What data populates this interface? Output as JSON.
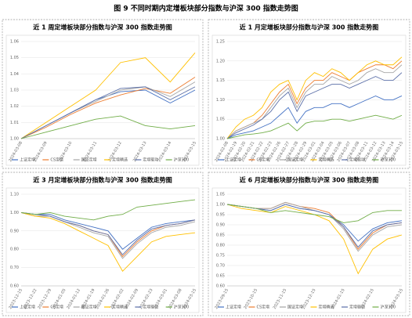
{
  "title": "图 9 不同时期内定增板块部分指数与沪深 300 指数走势图",
  "chart_data": [
    {
      "type": "line",
      "title": "近 1 周定增板块部分指数与沪深 300 指数走势图",
      "categories": [
        "2024-03-08",
        "2024-03-09",
        "2024-03-10",
        "2024-03-11",
        "2024-03-12",
        "2024-03-13",
        "2024-03-14",
        "2024-03-15"
      ],
      "ylim": [
        1.0,
        1.06
      ],
      "yticks": [
        {
          "value": 1.0,
          "label": "1.00"
        },
        1.01,
        1.02,
        1.03,
        1.04,
        1.05,
        1.06
      ],
      "grid": true,
      "series": [
        {
          "name": "上证定增",
          "color": "#4472c4",
          "values": [
            1.0,
            1.008,
            1.016,
            1.024,
            1.029,
            1.03,
            1.022,
            1.03
          ]
        },
        {
          "name": "CS定增",
          "color": "#ed7d31",
          "values": [
            1.0,
            1.007,
            1.015,
            1.022,
            1.027,
            1.031,
            1.028,
            1.038
          ]
        },
        {
          "name": "国证定增",
          "color": "#a5a5a5",
          "values": [
            1.0,
            1.008,
            1.016,
            1.023,
            1.03,
            1.032,
            1.026,
            1.035
          ]
        },
        {
          "name": "定增精选",
          "color": "#ffc000",
          "values": [
            1.0,
            1.01,
            1.02,
            1.03,
            1.047,
            1.05,
            1.035,
            1.053
          ]
        },
        {
          "name": "定增驱动",
          "color": "#5b6fa8",
          "values": [
            1.0,
            1.008,
            1.016,
            1.024,
            1.031,
            1.032,
            1.024,
            1.032
          ]
        },
        {
          "name": "沪深300",
          "color": "#70ad47",
          "values": [
            1.0,
            1.004,
            1.008,
            1.012,
            1.014,
            1.008,
            1.006,
            1.008
          ]
        }
      ]
    },
    {
      "type": "line",
      "title": "近 1 月定增板块部分指数与沪深 300 指数走势图",
      "categories": [
        "2024-02-08",
        "2024-02-19",
        "2024-02-20",
        "2024-02-21",
        "2024-02-22",
        "2024-02-23",
        "2024-02-26",
        "2024-02-27",
        "2024-02-28",
        "2024-02-29",
        "2024-03-01",
        "2024-03-04",
        "2024-03-05",
        "2024-03-06",
        "2024-03-07",
        "2024-03-08",
        "2024-03-11",
        "2024-03-12",
        "2024-03-13",
        "2024-03-14",
        "2024-03-15"
      ],
      "ylim": [
        1.0,
        1.25
      ],
      "yticks": [
        {
          "value": 1.0,
          "label": "1.00"
        },
        1.05,
        {
          "value": 1.1,
          "label": "1.10"
        },
        1.15,
        {
          "value": 1.2,
          "label": "1.20"
        },
        1.25
      ],
      "grid": true,
      "series": [
        {
          "name": "上证定增",
          "color": "#4472c4",
          "values": [
            1.0,
            1.01,
            1.015,
            1.02,
            1.03,
            1.04,
            1.06,
            1.08,
            1.04,
            1.07,
            1.08,
            1.08,
            1.09,
            1.09,
            1.08,
            1.09,
            1.1,
            1.11,
            1.1,
            1.1,
            1.11
          ]
        },
        {
          "name": "CS定增",
          "color": "#ed7d31",
          "values": [
            1.0,
            1.02,
            1.03,
            1.04,
            1.06,
            1.09,
            1.12,
            1.14,
            1.09,
            1.13,
            1.15,
            1.15,
            1.17,
            1.16,
            1.15,
            1.17,
            1.18,
            1.19,
            1.19,
            1.18,
            1.2
          ]
        },
        {
          "name": "国证定增",
          "color": "#a5a5a5",
          "values": [
            1.0,
            1.02,
            1.03,
            1.04,
            1.05,
            1.08,
            1.11,
            1.13,
            1.08,
            1.12,
            1.14,
            1.14,
            1.16,
            1.15,
            1.14,
            1.15,
            1.17,
            1.18,
            1.17,
            1.17,
            1.19
          ]
        },
        {
          "name": "定增精选",
          "color": "#ffc000",
          "values": [
            1.0,
            1.03,
            1.05,
            1.06,
            1.08,
            1.12,
            1.14,
            1.15,
            1.1,
            1.15,
            1.17,
            1.16,
            1.18,
            1.17,
            1.15,
            1.17,
            1.19,
            1.2,
            1.19,
            1.19,
            1.21
          ]
        },
        {
          "name": "定增驱动",
          "color": "#5b6fa8",
          "values": [
            1.0,
            1.015,
            1.025,
            1.035,
            1.05,
            1.07,
            1.1,
            1.12,
            1.07,
            1.11,
            1.12,
            1.13,
            1.14,
            1.14,
            1.13,
            1.14,
            1.15,
            1.16,
            1.15,
            1.15,
            1.17
          ]
        },
        {
          "name": "沪深300",
          "color": "#70ad47",
          "values": [
            1.0,
            1.005,
            1.01,
            1.012,
            1.015,
            1.02,
            1.03,
            1.04,
            1.02,
            1.04,
            1.045,
            1.045,
            1.05,
            1.05,
            1.045,
            1.05,
            1.055,
            1.06,
            1.055,
            1.05,
            1.06
          ]
        }
      ]
    },
    {
      "type": "line",
      "title": "近 3 月定增板块部分指数与沪深 300 指数走势图",
      "categories": [
        "2023-12-15",
        "2023-12-22",
        "2023-12-29",
        "2024-01-05",
        "2024-01-12",
        "2024-01-19",
        "2024-01-26",
        "2024-02-02",
        "2024-02-09",
        "2024-02-23",
        "2024-03-01",
        "2024-03-08",
        "2024-03-15"
      ],
      "ylim": [
        0.6,
        1.1
      ],
      "yticks": [
        {
          "value": 0.6,
          "label": "0.60"
        },
        {
          "value": 0.7,
          "label": "0.70"
        },
        {
          "value": 0.8,
          "label": "0.80"
        },
        {
          "value": 0.9,
          "label": "0.90"
        },
        {
          "value": 1.0,
          "label": "1.00"
        },
        {
          "value": 1.1,
          "label": "1.10"
        }
      ],
      "grid": true,
      "series": [
        {
          "name": "上证定增",
          "color": "#4472c4",
          "values": [
            1.0,
            0.99,
            0.99,
            0.96,
            0.94,
            0.92,
            0.9,
            0.8,
            0.86,
            0.92,
            0.94,
            0.95,
            0.96
          ]
        },
        {
          "name": "CS定增",
          "color": "#ed7d31",
          "values": [
            1.0,
            0.98,
            0.98,
            0.95,
            0.93,
            0.9,
            0.88,
            0.76,
            0.84,
            0.9,
            0.93,
            0.94,
            0.96
          ]
        },
        {
          "name": "国证定增",
          "color": "#a5a5a5",
          "values": [
            1.0,
            0.98,
            0.98,
            0.95,
            0.92,
            0.89,
            0.87,
            0.75,
            0.83,
            0.89,
            0.92,
            0.93,
            0.95
          ]
        },
        {
          "name": "定增精选",
          "color": "#ffc000",
          "values": [
            1.0,
            0.98,
            0.97,
            0.94,
            0.9,
            0.86,
            0.82,
            0.68,
            0.76,
            0.84,
            0.87,
            0.88,
            0.89
          ]
        },
        {
          "name": "定增驱动",
          "color": "#5b6fa8",
          "values": [
            1.0,
            0.99,
            0.98,
            0.95,
            0.93,
            0.9,
            0.88,
            0.77,
            0.85,
            0.91,
            0.93,
            0.94,
            0.96
          ]
        },
        {
          "name": "沪深300",
          "color": "#70ad47",
          "values": [
            1.0,
            0.99,
            1.0,
            0.98,
            0.97,
            0.96,
            0.98,
            0.99,
            1.03,
            1.04,
            1.05,
            1.06,
            1.07
          ]
        }
      ]
    },
    {
      "type": "line",
      "title": "近 6 月定增板块部分指数与沪深 300 指数走势图",
      "categories": [
        "2023-09-15",
        null,
        "2023-10-15",
        null,
        "2023-11-15",
        null,
        "2023-12-15",
        null,
        "2024-01-15",
        null,
        "2024-02-15",
        null,
        "2024-03-15"
      ],
      "ylim": [
        0.6,
        1.05
      ],
      "yticks": [
        {
          "value": 0.6,
          "label": "0.60"
        },
        0.65,
        {
          "value": 0.7,
          "label": "0.70"
        },
        0.75,
        {
          "value": 0.8,
          "label": "0.80"
        },
        0.85,
        {
          "value": 0.9,
          "label": "0.90"
        },
        0.95,
        {
          "value": 1.0,
          "label": "1.00"
        },
        1.05
      ],
      "grid": true,
      "series": [
        {
          "name": "上证定增",
          "color": "#4472c4",
          "values": [
            1.0,
            0.99,
            0.98,
            0.97,
            1.0,
            0.98,
            0.97,
            0.95,
            0.9,
            0.82,
            0.88,
            0.91,
            0.92
          ]
        },
        {
          "name": "CS定增",
          "color": "#ed7d31",
          "values": [
            1.0,
            0.99,
            0.98,
            0.98,
            1.01,
            0.99,
            0.98,
            0.96,
            0.89,
            0.78,
            0.86,
            0.9,
            0.91
          ]
        },
        {
          "name": "国证定增",
          "color": "#a5a5a5",
          "values": [
            1.0,
            0.99,
            0.98,
            0.98,
            1.01,
            0.99,
            0.97,
            0.95,
            0.88,
            0.77,
            0.85,
            0.89,
            0.9
          ]
        },
        {
          "name": "定增精选",
          "color": "#ffc000",
          "values": [
            1.0,
            0.98,
            0.97,
            0.96,
            0.99,
            0.97,
            0.95,
            0.92,
            0.83,
            0.66,
            0.78,
            0.83,
            0.85
          ]
        },
        {
          "name": "定增驱动",
          "color": "#5b6fa8",
          "values": [
            1.0,
            0.99,
            0.98,
            0.97,
            1.0,
            0.98,
            0.97,
            0.95,
            0.89,
            0.79,
            0.87,
            0.9,
            0.91
          ]
        },
        {
          "name": "沪深300",
          "color": "#70ad47",
          "values": [
            1.0,
            0.99,
            0.98,
            0.96,
            0.97,
            0.96,
            0.95,
            0.94,
            0.91,
            0.92,
            0.96,
            0.97,
            0.97
          ]
        }
      ]
    }
  ]
}
